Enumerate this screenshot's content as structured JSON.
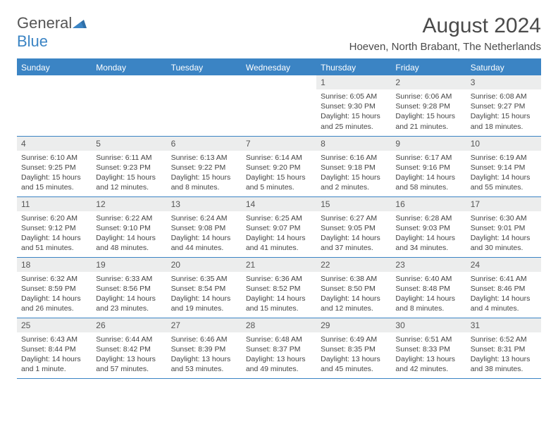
{
  "logo": {
    "text_general": "General",
    "text_blue": "Blue"
  },
  "title": "August 2024",
  "location": "Hoeven, North Brabant, The Netherlands",
  "colors": {
    "header_bg": "#3b84c4",
    "header_text": "#ffffff",
    "daynum_bg": "#eceded",
    "text": "#444444",
    "rule": "#3b84c4"
  },
  "day_headers": [
    "Sunday",
    "Monday",
    "Tuesday",
    "Wednesday",
    "Thursday",
    "Friday",
    "Saturday"
  ],
  "weeks": [
    [
      null,
      null,
      null,
      null,
      {
        "n": "1",
        "sunrise": "6:05 AM",
        "sunset": "9:30 PM",
        "daylight": "15 hours and 25 minutes."
      },
      {
        "n": "2",
        "sunrise": "6:06 AM",
        "sunset": "9:28 PM",
        "daylight": "15 hours and 21 minutes."
      },
      {
        "n": "3",
        "sunrise": "6:08 AM",
        "sunset": "9:27 PM",
        "daylight": "15 hours and 18 minutes."
      }
    ],
    [
      {
        "n": "4",
        "sunrise": "6:10 AM",
        "sunset": "9:25 PM",
        "daylight": "15 hours and 15 minutes."
      },
      {
        "n": "5",
        "sunrise": "6:11 AM",
        "sunset": "9:23 PM",
        "daylight": "15 hours and 12 minutes."
      },
      {
        "n": "6",
        "sunrise": "6:13 AM",
        "sunset": "9:22 PM",
        "daylight": "15 hours and 8 minutes."
      },
      {
        "n": "7",
        "sunrise": "6:14 AM",
        "sunset": "9:20 PM",
        "daylight": "15 hours and 5 minutes."
      },
      {
        "n": "8",
        "sunrise": "6:16 AM",
        "sunset": "9:18 PM",
        "daylight": "15 hours and 2 minutes."
      },
      {
        "n": "9",
        "sunrise": "6:17 AM",
        "sunset": "9:16 PM",
        "daylight": "14 hours and 58 minutes."
      },
      {
        "n": "10",
        "sunrise": "6:19 AM",
        "sunset": "9:14 PM",
        "daylight": "14 hours and 55 minutes."
      }
    ],
    [
      {
        "n": "11",
        "sunrise": "6:20 AM",
        "sunset": "9:12 PM",
        "daylight": "14 hours and 51 minutes."
      },
      {
        "n": "12",
        "sunrise": "6:22 AM",
        "sunset": "9:10 PM",
        "daylight": "14 hours and 48 minutes."
      },
      {
        "n": "13",
        "sunrise": "6:24 AM",
        "sunset": "9:08 PM",
        "daylight": "14 hours and 44 minutes."
      },
      {
        "n": "14",
        "sunrise": "6:25 AM",
        "sunset": "9:07 PM",
        "daylight": "14 hours and 41 minutes."
      },
      {
        "n": "15",
        "sunrise": "6:27 AM",
        "sunset": "9:05 PM",
        "daylight": "14 hours and 37 minutes."
      },
      {
        "n": "16",
        "sunrise": "6:28 AM",
        "sunset": "9:03 PM",
        "daylight": "14 hours and 34 minutes."
      },
      {
        "n": "17",
        "sunrise": "6:30 AM",
        "sunset": "9:01 PM",
        "daylight": "14 hours and 30 minutes."
      }
    ],
    [
      {
        "n": "18",
        "sunrise": "6:32 AM",
        "sunset": "8:59 PM",
        "daylight": "14 hours and 26 minutes."
      },
      {
        "n": "19",
        "sunrise": "6:33 AM",
        "sunset": "8:56 PM",
        "daylight": "14 hours and 23 minutes."
      },
      {
        "n": "20",
        "sunrise": "6:35 AM",
        "sunset": "8:54 PM",
        "daylight": "14 hours and 19 minutes."
      },
      {
        "n": "21",
        "sunrise": "6:36 AM",
        "sunset": "8:52 PM",
        "daylight": "14 hours and 15 minutes."
      },
      {
        "n": "22",
        "sunrise": "6:38 AM",
        "sunset": "8:50 PM",
        "daylight": "14 hours and 12 minutes."
      },
      {
        "n": "23",
        "sunrise": "6:40 AM",
        "sunset": "8:48 PM",
        "daylight": "14 hours and 8 minutes."
      },
      {
        "n": "24",
        "sunrise": "6:41 AM",
        "sunset": "8:46 PM",
        "daylight": "14 hours and 4 minutes."
      }
    ],
    [
      {
        "n": "25",
        "sunrise": "6:43 AM",
        "sunset": "8:44 PM",
        "daylight": "14 hours and 1 minute."
      },
      {
        "n": "26",
        "sunrise": "6:44 AM",
        "sunset": "8:42 PM",
        "daylight": "13 hours and 57 minutes."
      },
      {
        "n": "27",
        "sunrise": "6:46 AM",
        "sunset": "8:39 PM",
        "daylight": "13 hours and 53 minutes."
      },
      {
        "n": "28",
        "sunrise": "6:48 AM",
        "sunset": "8:37 PM",
        "daylight": "13 hours and 49 minutes."
      },
      {
        "n": "29",
        "sunrise": "6:49 AM",
        "sunset": "8:35 PM",
        "daylight": "13 hours and 45 minutes."
      },
      {
        "n": "30",
        "sunrise": "6:51 AM",
        "sunset": "8:33 PM",
        "daylight": "13 hours and 42 minutes."
      },
      {
        "n": "31",
        "sunrise": "6:52 AM",
        "sunset": "8:31 PM",
        "daylight": "13 hours and 38 minutes."
      }
    ]
  ],
  "labels": {
    "sunrise": "Sunrise:",
    "sunset": "Sunset:",
    "daylight": "Daylight:"
  }
}
